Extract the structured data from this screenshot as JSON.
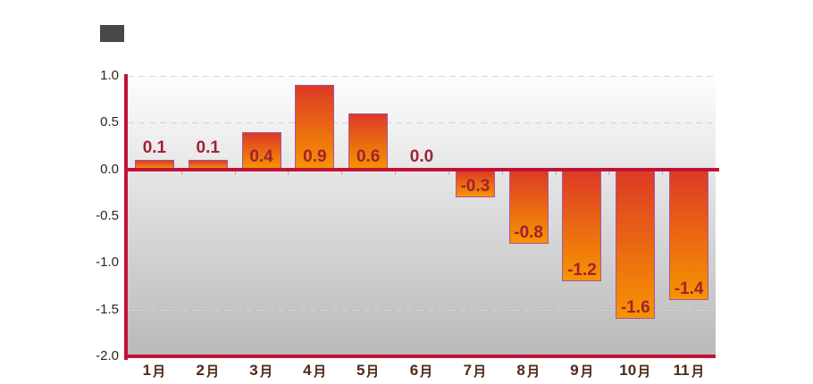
{
  "legend": {
    "series_label": "",
    "position": "top-left"
  },
  "chart_data": {
    "type": "bar",
    "title": "",
    "xlabel": "",
    "ylabel": "",
    "categories": [
      "1月",
      "2月",
      "3月",
      "4月",
      "5月",
      "6月",
      "7月",
      "8月",
      "9月",
      "10月",
      "11月"
    ],
    "values": [
      0.1,
      0.1,
      0.4,
      0.9,
      0.6,
      0.0,
      -0.3,
      -0.8,
      -1.2,
      -1.6,
      -1.4
    ],
    "value_labels": [
      "0.1",
      "0.1",
      "0.4",
      "0.9",
      "0.6",
      "0.0",
      "-0.3",
      "-0.8",
      "-1.2",
      "-1.6",
      "-1.4"
    ],
    "ylim": [
      -2.0,
      1.0
    ],
    "ytick_step": 0.5,
    "yticks": [
      "1.0",
      "0.5",
      "0.0",
      "-0.5",
      "-1.0",
      "-1.5",
      "-2.0"
    ],
    "grid": "horizontal-dashed",
    "data_labels": true,
    "legend_position": "top-left"
  },
  "colors": {
    "page_bg": "#ffffff",
    "plot_bg_top": "#fdfdfd",
    "plot_bg_bottom": "#b9b9b9",
    "bar_gradient_top": "#dc3a26",
    "bar_gradient_bottom": "#f79400",
    "bar_border": "#a855a2",
    "axis_line": "#c11236",
    "gridline": "#d4d4d4",
    "category_tick": "#b0b0b0",
    "data_label": "#a02134",
    "ytick_label": "#33211a",
    "xtick_label": "#4c2a18",
    "legend_swatch": "#474747"
  }
}
